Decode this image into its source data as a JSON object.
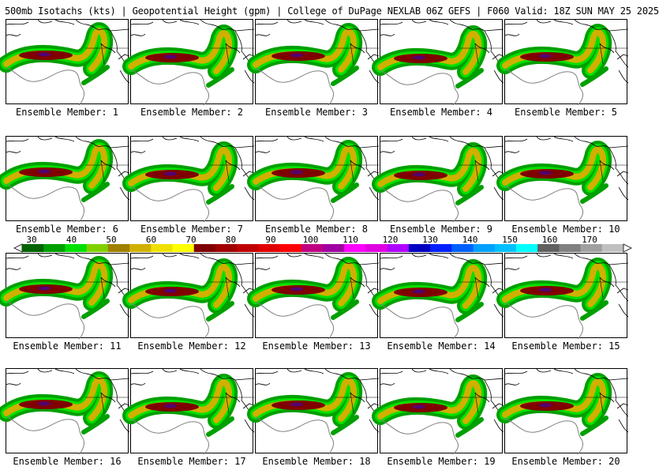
{
  "header": {
    "title": "500mb Isotachs (kts) | Geopotential Height (gpm) | College of DuPage NEXLAB   06Z GEFS | F060 Valid: 18Z SUN MAY 25 2025"
  },
  "members": [
    {
      "label": "Ensemble Member: 1"
    },
    {
      "label": "Ensemble Member: 2"
    },
    {
      "label": "Ensemble Member: 3"
    },
    {
      "label": "Ensemble Member: 4"
    },
    {
      "label": "Ensemble Member: 5"
    },
    {
      "label": "Ensemble Member: 6"
    },
    {
      "label": "Ensemble Member: 7"
    },
    {
      "label": "Ensemble Member: 8"
    },
    {
      "label": "Ensemble Member: 9"
    },
    {
      "label": "Ensemble Member: 10"
    },
    {
      "label": "Ensemble Member: 11"
    },
    {
      "label": "Ensemble Member: 12"
    },
    {
      "label": "Ensemble Member: 13"
    },
    {
      "label": "Ensemble Member: 14"
    },
    {
      "label": "Ensemble Member: 15"
    },
    {
      "label": "Ensemble Member: 16"
    },
    {
      "label": "Ensemble Member: 17"
    },
    {
      "label": "Ensemble Member: 18"
    },
    {
      "label": "Ensemble Member: 19"
    },
    {
      "label": "Ensemble Member: 20"
    }
  ],
  "legend": {
    "labels": [
      "30",
      "40",
      "50",
      "60",
      "70",
      "80",
      "90",
      "100",
      "110",
      "120",
      "130",
      "140",
      "150",
      "160",
      "170"
    ],
    "colors": [
      "#006400",
      "#00a000",
      "#00e000",
      "#80d000",
      "#a08000",
      "#d0b000",
      "#f0e000",
      "#ffff00",
      "#800000",
      "#a00000",
      "#c00000",
      "#e00000",
      "#ff0000",
      "#c00080",
      "#a000a0",
      "#ff00ff",
      "#e000e0",
      "#b000ff",
      "#0000c0",
      "#0020ff",
      "#0060ff",
      "#00a0ff",
      "#00c0ff",
      "#00ffff",
      "#606060",
      "#808080",
      "#a0a0a0",
      "#c0c0c0"
    ]
  },
  "map_colors": {
    "coast": "#000000",
    "height_contour": "#808080",
    "jet_green_dark": "#00a000",
    "jet_green_light": "#00e000",
    "jet_yellow": "#d0b000",
    "jet_core": "#800000",
    "jet_core_max": "#4000a0"
  }
}
